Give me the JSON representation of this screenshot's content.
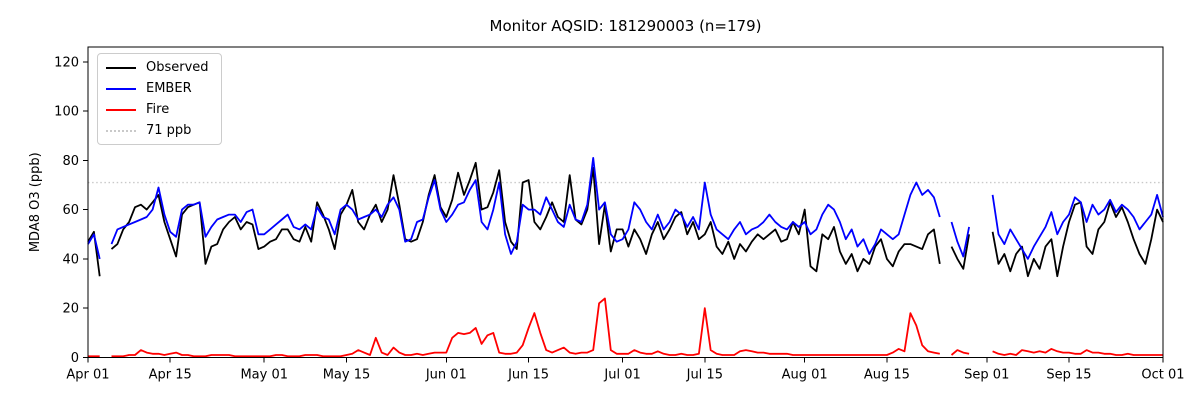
{
  "chart_data": {
    "type": "line",
    "title": "Monitor AQSID: 181290003 (n=179)",
    "ylabel": "MDA8 O3 (ppb)",
    "xlabel": "",
    "ylim": [
      0,
      126
    ],
    "yticks": [
      0,
      20,
      40,
      60,
      80,
      100,
      120
    ],
    "grid": "off",
    "legend_position": "upper left",
    "x_is_daily_from": "Apr 01",
    "n_points": 184,
    "xticks": [
      {
        "day": 0,
        "label": "Apr 01"
      },
      {
        "day": 14,
        "label": "Apr 15"
      },
      {
        "day": 30,
        "label": "May 01"
      },
      {
        "day": 44,
        "label": "May 15"
      },
      {
        "day": 61,
        "label": "Jun 01"
      },
      {
        "day": 75,
        "label": "Jun 15"
      },
      {
        "day": 91,
        "label": "Jul 01"
      },
      {
        "day": 105,
        "label": "Jul 15"
      },
      {
        "day": 122,
        "label": "Aug 01"
      },
      {
        "day": 136,
        "label": "Aug 15"
      },
      {
        "day": 153,
        "label": "Sep 01"
      },
      {
        "day": 167,
        "label": "Sep 15"
      },
      {
        "day": 183,
        "label": "Oct 01"
      }
    ],
    "ref_line": {
      "label": "71 ppb",
      "value": 71,
      "color": "#c9c9c9",
      "style": "dotted"
    },
    "series": [
      {
        "name": "Observed",
        "color": "#000000",
        "values": [
          47,
          51,
          33,
          null,
          44,
          46,
          52,
          55,
          61,
          62,
          60,
          63,
          66,
          55,
          48,
          41,
          58,
          61,
          62,
          63,
          38,
          45,
          46,
          52,
          55,
          57,
          52,
          55,
          54,
          44,
          45,
          47,
          48,
          52,
          52,
          48,
          47,
          53,
          47,
          63,
          58,
          52,
          44,
          58,
          62,
          68,
          55,
          52,
          58,
          62,
          55,
          60,
          74,
          62,
          48,
          47,
          48,
          55,
          66,
          74,
          61,
          57,
          64,
          75,
          66,
          72,
          79,
          60,
          61,
          67,
          76,
          55,
          47,
          44,
          71,
          72,
          55,
          52,
          57,
          63,
          57,
          55,
          74,
          56,
          54,
          60,
          77,
          46,
          62,
          43,
          52,
          52,
          45,
          52,
          48,
          42,
          50,
          55,
          48,
          52,
          57,
          59,
          50,
          55,
          48,
          50,
          55,
          45,
          42,
          47,
          40,
          46,
          43,
          47,
          50,
          48,
          50,
          52,
          47,
          48,
          55,
          50,
          60,
          37,
          35,
          50,
          48,
          53,
          43,
          38,
          42,
          35,
          40,
          38,
          45,
          48,
          40,
          37,
          43,
          46,
          46,
          45,
          44,
          50,
          52,
          38,
          null,
          45,
          40,
          36,
          50,
          null,
          null,
          null,
          51,
          38,
          42,
          35,
          42,
          45,
          33,
          40,
          36,
          45,
          48,
          33,
          45,
          55,
          62,
          63,
          45,
          42,
          52,
          55,
          63,
          57,
          61,
          55,
          48,
          42,
          38,
          48,
          60,
          55
        ]
      },
      {
        "name": "EMBER",
        "color": "#0000ff",
        "values": [
          46,
          50,
          40,
          null,
          46,
          52,
          53,
          54,
          55,
          56,
          57,
          60,
          69,
          58,
          51,
          49,
          60,
          62,
          62,
          63,
          49,
          53,
          56,
          57,
          58,
          58,
          55,
          59,
          60,
          50,
          50,
          52,
          54,
          56,
          58,
          53,
          52,
          54,
          52,
          61,
          57,
          56,
          50,
          60,
          62,
          60,
          56,
          57,
          58,
          60,
          57,
          62,
          65,
          60,
          47,
          48,
          55,
          56,
          65,
          72,
          60,
          55,
          58,
          62,
          63,
          68,
          72,
          55,
          52,
          60,
          71,
          50,
          42,
          47,
          62,
          60,
          60,
          58,
          65,
          60,
          55,
          53,
          62,
          56,
          55,
          62,
          81,
          60,
          63,
          50,
          47,
          48,
          52,
          63,
          60,
          55,
          52,
          58,
          52,
          55,
          60,
          58,
          53,
          57,
          52,
          71,
          58,
          52,
          50,
          48,
          52,
          55,
          50,
          52,
          53,
          55,
          58,
          55,
          53,
          52,
          55,
          53,
          55,
          50,
          52,
          58,
          62,
          60,
          55,
          48,
          52,
          45,
          48,
          42,
          46,
          52,
          50,
          48,
          50,
          58,
          66,
          71,
          66,
          68,
          65,
          57,
          null,
          55,
          47,
          41,
          53,
          null,
          null,
          null,
          66,
          50,
          46,
          52,
          48,
          44,
          40,
          45,
          49,
          53,
          59,
          50,
          55,
          58,
          65,
          63,
          55,
          62,
          58,
          60,
          64,
          59,
          62,
          60,
          57,
          52,
          55,
          58,
          66,
          57
        ]
      },
      {
        "name": "Fire",
        "color": "#ff0000",
        "values": [
          0.5,
          0.5,
          0.5,
          null,
          0.5,
          0.5,
          0.5,
          1,
          1,
          3,
          2,
          1.5,
          1.5,
          1,
          1.5,
          2,
          1,
          1,
          0.5,
          0.5,
          0.5,
          1,
          1,
          1,
          1,
          0.5,
          0.5,
          0.5,
          0.5,
          0.5,
          0.5,
          0.5,
          1,
          1,
          0.5,
          0.5,
          0.5,
          1,
          1,
          1,
          0.5,
          0.5,
          0.5,
          0.5,
          1,
          1.5,
          3,
          2,
          1,
          8,
          2,
          1,
          4,
          2,
          1,
          1,
          1.5,
          1,
          1.5,
          2,
          2,
          2,
          8,
          10,
          9.5,
          10,
          12,
          5.5,
          9,
          10,
          2,
          1.5,
          1.5,
          2,
          5,
          12,
          18,
          10,
          3,
          2,
          3,
          4,
          2,
          1.5,
          2,
          2,
          3,
          22,
          24,
          3,
          1.5,
          1.5,
          1.5,
          3,
          2,
          1.5,
          1.5,
          2.5,
          1.5,
          1,
          1,
          1.5,
          1,
          1,
          1.5,
          20,
          3,
          1.5,
          1,
          1,
          1,
          2.5,
          3,
          2.5,
          2,
          2,
          1.5,
          1.5,
          1.5,
          1.5,
          1,
          1,
          1,
          1,
          1,
          1,
          1,
          1,
          1,
          1,
          1,
          1,
          1,
          1,
          1,
          1,
          1,
          2,
          3.5,
          2.5,
          18,
          13,
          5,
          2.5,
          2,
          1.5,
          null,
          1,
          3,
          2,
          1.5,
          null,
          null,
          null,
          2.5,
          1.5,
          1,
          1.5,
          1,
          3,
          2.5,
          2,
          2.5,
          2,
          3.5,
          2.5,
          2,
          2,
          1.5,
          1.5,
          3,
          2,
          2,
          1.5,
          1.5,
          1,
          1,
          1.5,
          1,
          1,
          1,
          1,
          1,
          1
        ]
      }
    ]
  }
}
